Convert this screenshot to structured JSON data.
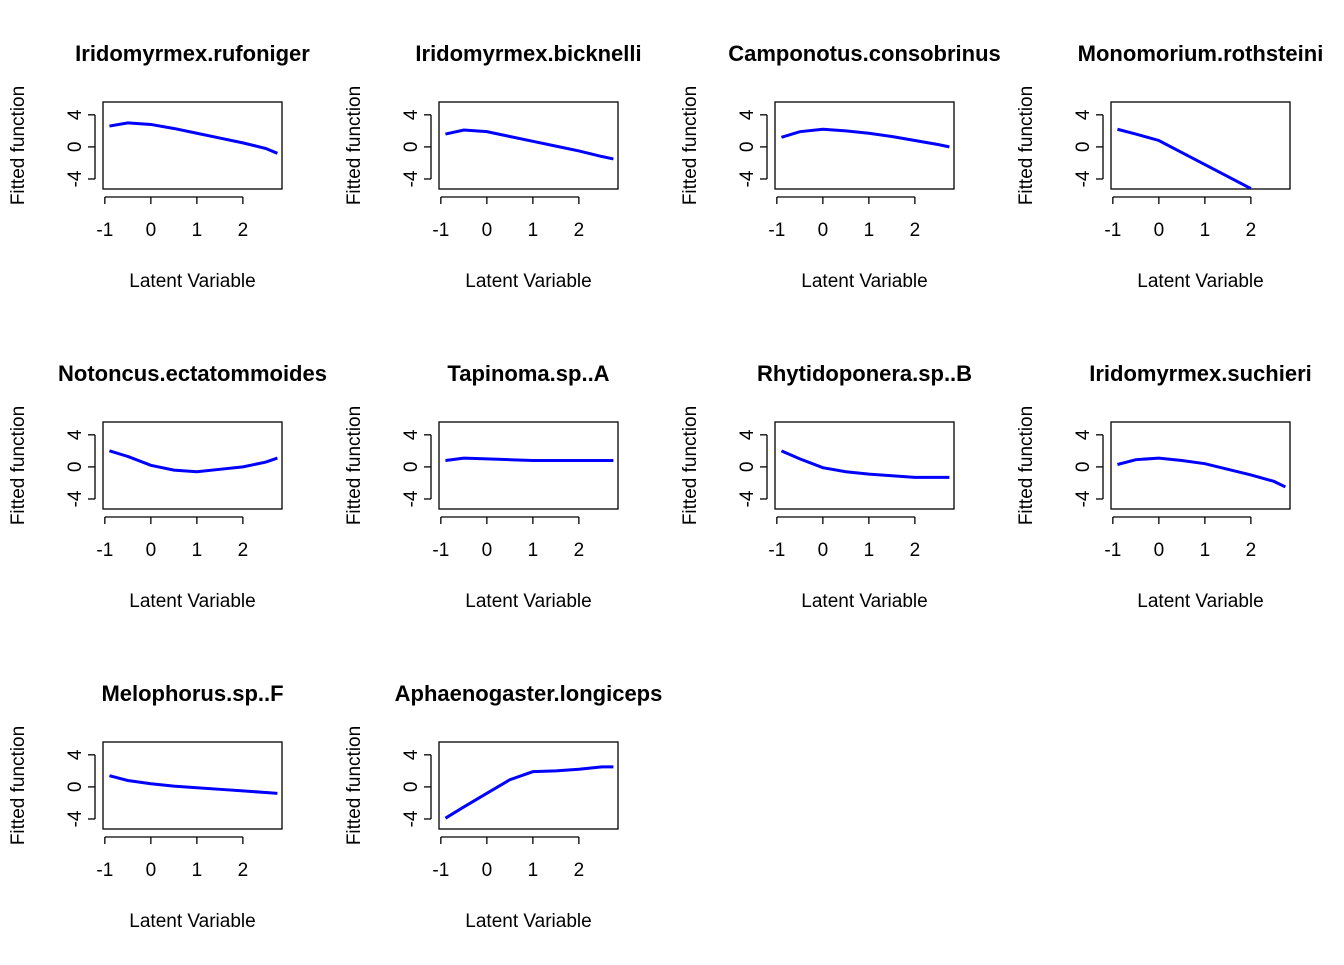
{
  "chart_data": [
    {
      "type": "line",
      "title": "Iridomyrmex.rufoniger",
      "xlabel": "Latent Variable",
      "ylabel": "Fitted function",
      "x": [
        -0.9,
        -0.5,
        0,
        0.5,
        1,
        1.5,
        2,
        2.5,
        2.75
      ],
      "values": [
        2.6,
        3.0,
        2.8,
        2.3,
        1.7,
        1.1,
        0.5,
        -0.2,
        -0.8
      ],
      "color": "#0000ff",
      "xlim": [
        -1.04,
        2.85
      ],
      "ylim": [
        -5.25,
        5.6
      ],
      "xticks": [
        -1,
        0,
        1,
        2
      ],
      "yticks": [
        -4,
        0,
        4
      ]
    },
    {
      "type": "line",
      "title": "Iridomyrmex.bicknelli",
      "xlabel": "Latent Variable",
      "ylabel": "Fitted function",
      "x": [
        -0.9,
        -0.5,
        0,
        0.5,
        1,
        1.5,
        2,
        2.5,
        2.75
      ],
      "values": [
        1.6,
        2.1,
        1.9,
        1.3,
        0.7,
        0.1,
        -0.5,
        -1.2,
        -1.5
      ],
      "color": "#0000ff",
      "xlim": [
        -1.04,
        2.85
      ],
      "ylim": [
        -5.25,
        5.6
      ],
      "xticks": [
        -1,
        0,
        1,
        2
      ],
      "yticks": [
        -4,
        0,
        4
      ]
    },
    {
      "type": "line",
      "title": "Camponotus.consobrinus",
      "xlabel": "Latent Variable",
      "ylabel": "Fitted function",
      "x": [
        -0.9,
        -0.5,
        0,
        0.5,
        1,
        1.5,
        2,
        2.5,
        2.75
      ],
      "values": [
        1.2,
        1.9,
        2.2,
        2.0,
        1.7,
        1.3,
        0.8,
        0.3,
        0.0
      ],
      "color": "#0000ff",
      "xlim": [
        -1.04,
        2.85
      ],
      "ylim": [
        -5.25,
        5.6
      ],
      "xticks": [
        -1,
        0,
        1,
        2
      ],
      "yticks": [
        -4,
        0,
        4
      ]
    },
    {
      "type": "line",
      "title": "Monomorium.rothsteini",
      "xlabel": "Latent Variable",
      "ylabel": "Fitted function",
      "x": [
        -0.9,
        -0.5,
        0,
        0.5,
        1,
        1.5,
        2,
        2.5,
        2.75
      ],
      "values": [
        2.2,
        1.6,
        0.8,
        -0.7,
        -2.2,
        -3.7,
        -5.2,
        null,
        null
      ],
      "color": "#0000ff",
      "xlim": [
        -1.04,
        2.85
      ],
      "ylim": [
        -5.25,
        5.6
      ],
      "xticks": [
        -1,
        0,
        1,
        2
      ],
      "yticks": [
        -4,
        0,
        4
      ]
    },
    {
      "type": "line",
      "title": "Notoncus.ectatommoides",
      "xlabel": "Latent Variable",
      "ylabel": "Fitted function",
      "x": [
        -0.9,
        -0.5,
        0,
        0.5,
        1,
        1.5,
        2,
        2.5,
        2.75
      ],
      "values": [
        2.0,
        1.3,
        0.2,
        -0.4,
        -0.6,
        -0.3,
        0.0,
        0.6,
        1.1
      ],
      "color": "#0000ff",
      "xlim": [
        -1.04,
        2.85
      ],
      "ylim": [
        -5.25,
        5.6
      ],
      "xticks": [
        -1,
        0,
        1,
        2
      ],
      "yticks": [
        -4,
        0,
        4
      ]
    },
    {
      "type": "line",
      "title": "Tapinoma.sp..A",
      "xlabel": "Latent Variable",
      "ylabel": "Fitted function",
      "x": [
        -0.9,
        -0.5,
        0,
        0.5,
        1,
        1.5,
        2,
        2.5,
        2.75
      ],
      "values": [
        0.8,
        1.1,
        1.0,
        0.9,
        0.8,
        0.8,
        0.8,
        0.8,
        0.8
      ],
      "color": "#0000ff",
      "xlim": [
        -1.04,
        2.85
      ],
      "ylim": [
        -5.25,
        5.6
      ],
      "xticks": [
        -1,
        0,
        1,
        2
      ],
      "yticks": [
        -4,
        0,
        4
      ]
    },
    {
      "type": "line",
      "title": "Rhytidoponera.sp..B",
      "xlabel": "Latent Variable",
      "ylabel": "Fitted function",
      "x": [
        -0.9,
        -0.5,
        0,
        0.5,
        1,
        1.5,
        2,
        2.5,
        2.75
      ],
      "values": [
        2.0,
        1.0,
        -0.1,
        -0.6,
        -0.9,
        -1.1,
        -1.3,
        -1.3,
        -1.3
      ],
      "color": "#0000ff",
      "xlim": [
        -1.04,
        2.85
      ],
      "ylim": [
        -5.25,
        5.6
      ],
      "xticks": [
        -1,
        0,
        1,
        2
      ],
      "yticks": [
        -4,
        0,
        4
      ]
    },
    {
      "type": "line",
      "title": "Iridomyrmex.suchieri",
      "xlabel": "Latent Variable",
      "ylabel": "Fitted function",
      "x": [
        -0.9,
        -0.5,
        0,
        0.5,
        1,
        1.5,
        2,
        2.5,
        2.75
      ],
      "values": [
        0.3,
        0.9,
        1.1,
        0.8,
        0.4,
        -0.3,
        -1.0,
        -1.8,
        -2.5
      ],
      "color": "#0000ff",
      "xlim": [
        -1.04,
        2.85
      ],
      "ylim": [
        -5.25,
        5.6
      ],
      "xticks": [
        -1,
        0,
        1,
        2
      ],
      "yticks": [
        -4,
        0,
        4
      ]
    },
    {
      "type": "line",
      "title": "Melophorus.sp..F",
      "xlabel": "Latent Variable",
      "ylabel": "Fitted function",
      "x": [
        -0.9,
        -0.5,
        0,
        0.5,
        1,
        1.5,
        2,
        2.5,
        2.75
      ],
      "values": [
        1.4,
        0.8,
        0.4,
        0.1,
        -0.1,
        -0.3,
        -0.5,
        -0.7,
        -0.8
      ],
      "color": "#0000ff",
      "xlim": [
        -1.04,
        2.85
      ],
      "ylim": [
        -5.25,
        5.6
      ],
      "xticks": [
        -1,
        0,
        1,
        2
      ],
      "yticks": [
        -4,
        0,
        4
      ]
    },
    {
      "type": "line",
      "title": "Aphaenogaster.longiceps",
      "xlabel": "Latent Variable",
      "ylabel": "Fitted function",
      "x": [
        -0.9,
        -0.5,
        0,
        0.5,
        1,
        1.5,
        2,
        2.5,
        2.75
      ],
      "values": [
        -3.9,
        -2.5,
        -0.8,
        0.9,
        1.9,
        2.0,
        2.2,
        2.5,
        2.5
      ],
      "color": "#0000ff",
      "xlim": [
        -1.04,
        2.85
      ],
      "ylim": [
        -5.25,
        5.6
      ],
      "xticks": [
        -1,
        0,
        1,
        2
      ],
      "yticks": [
        -4,
        0,
        4
      ]
    }
  ]
}
